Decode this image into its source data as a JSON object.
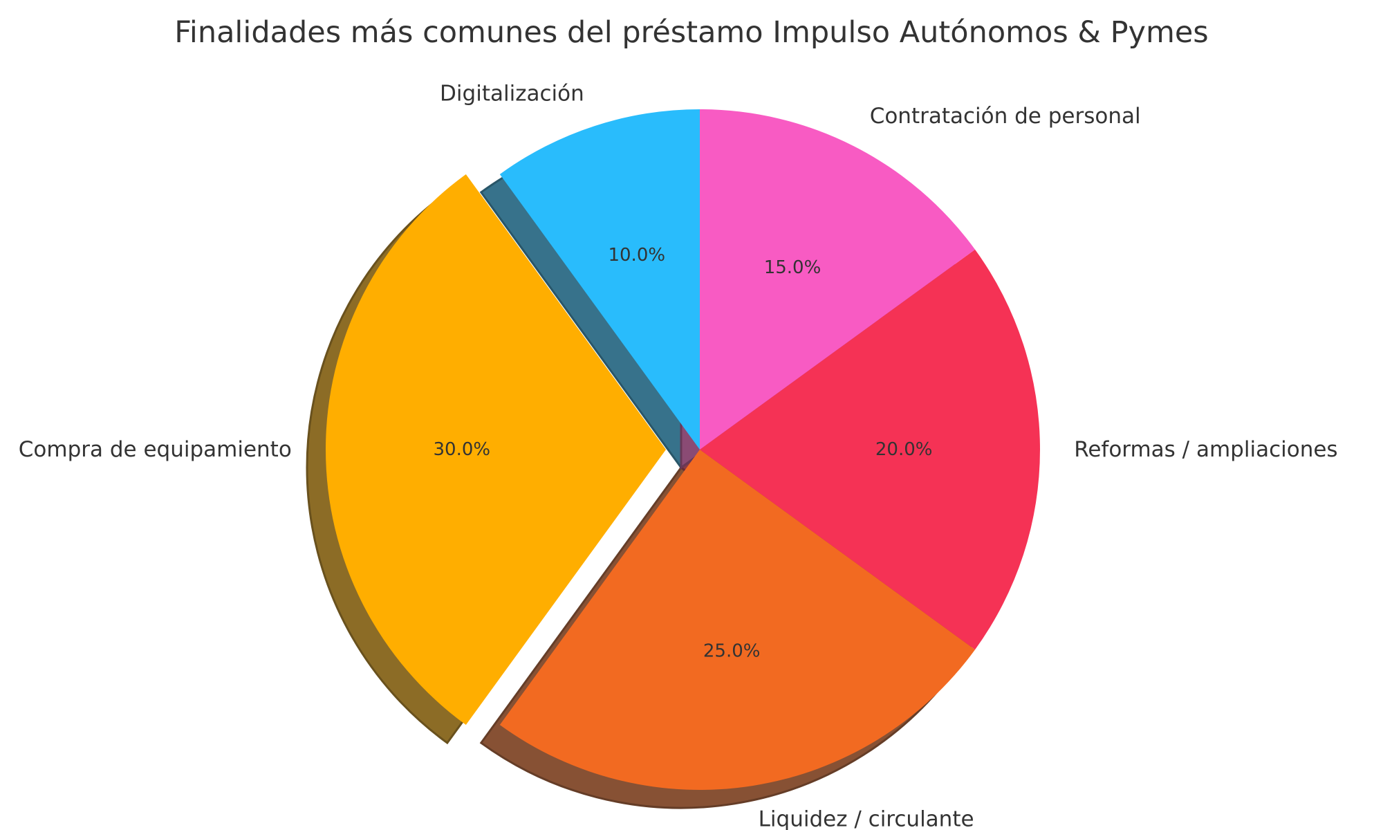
{
  "chart_data": {
    "type": "pie",
    "title": "Finalidades más comunes del préstamo Impulso Autónomos & Pymes",
    "categories": [
      "Digitalización",
      "Compra de equipamiento",
      "Liquidez / circulante",
      "Reformas / ampliaciones",
      "Contratación de personal"
    ],
    "values": [
      10,
      30,
      25,
      20,
      15
    ],
    "value_labels": [
      "10.0%",
      "30.0%",
      "25.0%",
      "20.0%",
      "15.0%"
    ],
    "colors": [
      "#29BCFC",
      "#FFAE00",
      "#F26A21",
      "#F53255",
      "#F85BC3"
    ],
    "exploded": [
      "Compra de equipamiento"
    ],
    "start_angle_deg": 90,
    "direction": "counterclockwise",
    "shadow": true,
    "legend": "none"
  }
}
